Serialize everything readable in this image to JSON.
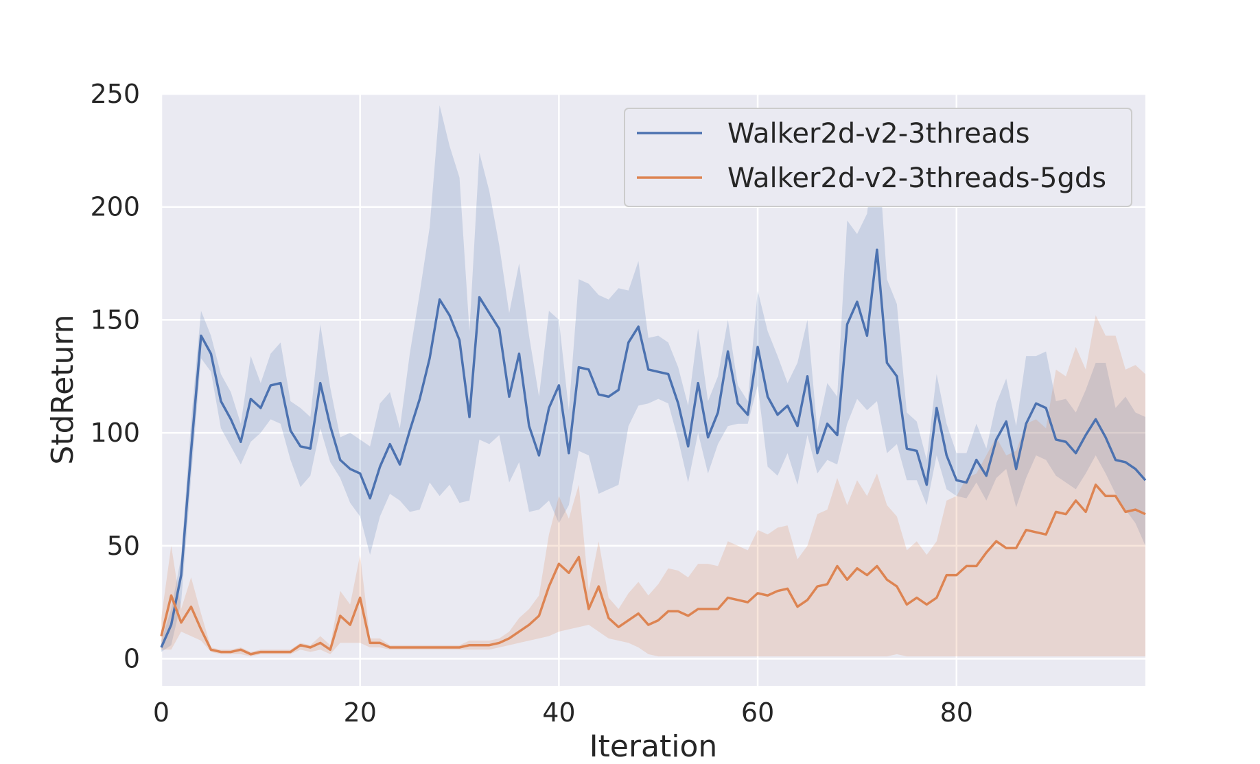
{
  "chart_data": {
    "type": "line",
    "title": "",
    "xlabel": "Iteration",
    "ylabel": "StdReturn",
    "xlim": [
      0,
      99
    ],
    "ylim": [
      -12,
      250
    ],
    "xticks": [
      0,
      20,
      40,
      60,
      80
    ],
    "yticks": [
      0,
      50,
      100,
      150,
      200,
      250
    ],
    "grid": true,
    "legend_position": "top-right",
    "x": [
      0,
      1,
      2,
      3,
      4,
      5,
      6,
      7,
      8,
      9,
      10,
      11,
      12,
      13,
      14,
      15,
      16,
      17,
      18,
      19,
      20,
      21,
      22,
      23,
      24,
      25,
      26,
      27,
      28,
      29,
      30,
      31,
      32,
      33,
      34,
      35,
      36,
      37,
      38,
      39,
      40,
      41,
      42,
      43,
      44,
      45,
      46,
      47,
      48,
      49,
      50,
      51,
      52,
      53,
      54,
      55,
      56,
      57,
      58,
      59,
      60,
      61,
      62,
      63,
      64,
      65,
      66,
      67,
      68,
      69,
      70,
      71,
      72,
      73,
      74,
      75,
      76,
      77,
      78,
      79,
      80,
      81,
      82,
      83,
      84,
      85,
      86,
      87,
      88,
      89,
      90,
      91,
      92,
      93,
      94,
      95,
      96,
      97,
      98,
      99
    ],
    "series": [
      {
        "name": "Walker2d-v2-3threads",
        "color": "#4c72b0",
        "values": [
          5,
          15,
          37,
          92,
          143,
          135,
          114,
          106,
          96,
          115,
          111,
          121,
          122,
          101,
          94,
          93,
          122,
          103,
          88,
          84,
          82,
          71,
          85,
          95,
          86,
          101,
          115,
          133,
          159,
          152,
          141,
          107,
          160,
          153,
          146,
          116,
          135,
          103,
          90,
          111,
          121,
          91,
          129,
          128,
          117,
          116,
          119,
          140,
          147,
          128,
          127,
          126,
          113,
          94,
          122,
          98,
          109,
          136,
          113,
          108,
          138,
          116,
          108,
          112,
          103,
          125,
          91,
          104,
          99,
          148,
          158,
          143,
          181,
          131,
          125,
          93,
          92,
          77,
          111,
          90,
          79,
          78,
          88,
          81,
          97,
          105,
          84,
          104,
          113,
          111,
          97,
          96,
          91,
          99,
          106,
          98,
          88,
          87,
          84,
          79
        ],
        "lower": [
          3,
          6,
          25,
          80,
          133,
          127,
          102,
          94,
          86,
          96,
          100,
          106,
          104,
          88,
          76,
          81,
          102,
          87,
          80,
          69,
          63,
          46,
          63,
          73,
          70,
          65,
          66,
          78,
          72,
          77,
          69,
          70,
          97,
          95,
          99,
          78,
          87,
          65,
          66,
          70,
          60,
          68,
          92,
          90,
          73,
          75,
          77,
          103,
          112,
          113,
          115,
          113,
          97,
          78,
          100,
          82,
          95,
          103,
          104,
          104,
          121,
          85,
          81,
          91,
          77,
          99,
          82,
          88,
          86,
          104,
          115,
          110,
          114,
          91,
          95,
          79,
          79,
          68,
          90,
          75,
          72,
          71,
          78,
          70,
          80,
          84,
          67,
          80,
          90,
          88,
          81,
          78,
          75,
          82,
          90,
          82,
          73,
          66,
          60,
          50
        ],
        "upper": [
          8,
          22,
          45,
          105,
          154,
          143,
          126,
          118,
          104,
          134,
          122,
          135,
          140,
          114,
          111,
          107,
          148,
          120,
          98,
          100,
          97,
          94,
          113,
          118,
          102,
          135,
          162,
          191,
          245,
          227,
          213,
          145,
          224,
          207,
          183,
          153,
          175,
          143,
          116,
          154,
          150,
          110,
          168,
          166,
          161,
          159,
          164,
          163,
          176,
          142,
          143,
          140,
          129,
          112,
          146,
          114,
          125,
          150,
          121,
          114,
          163,
          145,
          134,
          122,
          131,
          150,
          101,
          122,
          116,
          194,
          188,
          197,
          234,
          168,
          157,
          109,
          105,
          88,
          126,
          104,
          91,
          91,
          104,
          93,
          113,
          124,
          103,
          134,
          134,
          136,
          114,
          115,
          109,
          119,
          131,
          131,
          111,
          116,
          109,
          107
        ]
      },
      {
        "name": "Walker2d-v2-3threads-5gds",
        "color": "#dd8452",
        "values": [
          10,
          28,
          16,
          23,
          13,
          4,
          3,
          3,
          4,
          2,
          3,
          3,
          3,
          3,
          6,
          5,
          7,
          4,
          19,
          15,
          27,
          7,
          7,
          5,
          5,
          5,
          5,
          5,
          5,
          5,
          5,
          6,
          6,
          6,
          7,
          9,
          12,
          15,
          19,
          32,
          42,
          38,
          45,
          22,
          32,
          18,
          14,
          17,
          20,
          15,
          17,
          21,
          21,
          19,
          22,
          22,
          22,
          27,
          26,
          25,
          29,
          28,
          30,
          31,
          23,
          26,
          32,
          33,
          41,
          35,
          40,
          37,
          41,
          35,
          32,
          24,
          27,
          24,
          27,
          37,
          37,
          41,
          41,
          47,
          52,
          49,
          49,
          57,
          56,
          55,
          65,
          64,
          70,
          65,
          77,
          72,
          72,
          65,
          66,
          64
        ],
        "lower": [
          4,
          4,
          12,
          10,
          8,
          3,
          2,
          2,
          2,
          1,
          2,
          2,
          2,
          2,
          4,
          3,
          4,
          2,
          7,
          7,
          7,
          5,
          5,
          4,
          4,
          4,
          4,
          4,
          4,
          4,
          4,
          4,
          4,
          4,
          5,
          6,
          7,
          8,
          9,
          10,
          12,
          13,
          14,
          15,
          12,
          9,
          8,
          7,
          5,
          2,
          1,
          1,
          1,
          1,
          1,
          1,
          1,
          1,
          1,
          1,
          1,
          1,
          1,
          1,
          1,
          1,
          1,
          1,
          1,
          1,
          1,
          1,
          1,
          1,
          2,
          1,
          1,
          1,
          1,
          1,
          1,
          1,
          1,
          1,
          1,
          1,
          1,
          1,
          1,
          1,
          1,
          1,
          1,
          1,
          1,
          1,
          1,
          1,
          1,
          1
        ],
        "upper": [
          18,
          50,
          22,
          36,
          20,
          5,
          4,
          4,
          5,
          3,
          4,
          4,
          4,
          4,
          7,
          6,
          10,
          6,
          30,
          24,
          46,
          9,
          9,
          6,
          6,
          6,
          6,
          6,
          6,
          6,
          6,
          8,
          8,
          8,
          9,
          12,
          18,
          22,
          28,
          55,
          72,
          62,
          77,
          30,
          52,
          27,
          22,
          29,
          34,
          28,
          33,
          40,
          39,
          36,
          42,
          42,
          41,
          52,
          50,
          48,
          57,
          55,
          58,
          59,
          44,
          50,
          64,
          66,
          80,
          68,
          79,
          72,
          82,
          68,
          63,
          48,
          52,
          46,
          52,
          70,
          72,
          80,
          82,
          90,
          98,
          90,
          92,
          104,
          106,
          102,
          128,
          125,
          138,
          128,
          152,
          143,
          143,
          128,
          130,
          126
        ]
      }
    ]
  }
}
